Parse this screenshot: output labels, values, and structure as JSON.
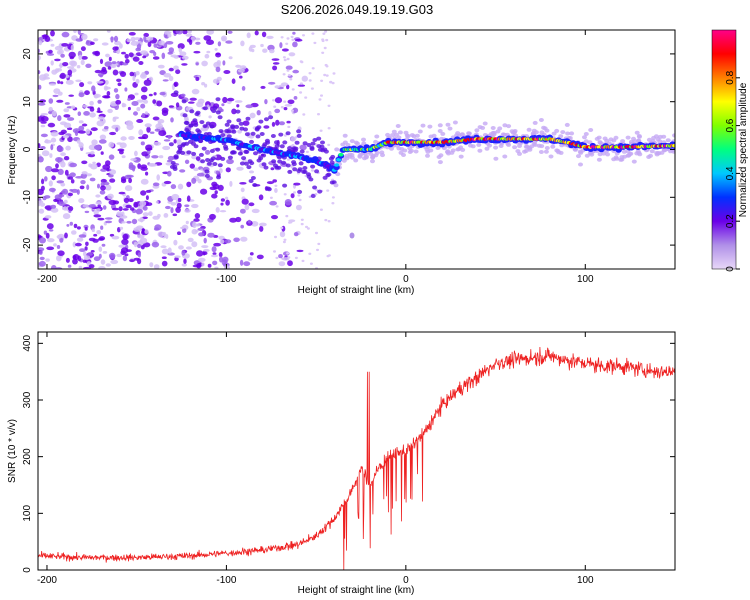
{
  "title": "S206.2026.049.19.19.G03",
  "chart_data": [
    {
      "type": "heatmap",
      "panel": "top",
      "xlabel": "Height of straight line (km)",
      "ylabel": "Frequency (Hz)",
      "xlim": [
        -205,
        150
      ],
      "ylim": [
        -25,
        25
      ],
      "xticks": [
        -200,
        -100,
        0,
        100
      ],
      "yticks": [
        -20,
        -10,
        0,
        10,
        20
      ],
      "colorbar": {
        "label": "Normalized spectral amplitude",
        "range": [
          0,
          1
        ],
        "ticks": [
          0,
          0.2,
          0.4,
          0.6,
          0.8
        ],
        "colormap": [
          "#e8d8f8",
          "#b090e8",
          "#6a00e8",
          "#0030ff",
          "#00c8ff",
          "#00ff80",
          "#80ff00",
          "#ffff00",
          "#ff8000",
          "#ff0000",
          "#ff0088"
        ]
      },
      "ridge": {
        "description_points_km_hz": [
          [
            -125,
            3
          ],
          [
            -100,
            2
          ],
          [
            -80,
            0
          ],
          [
            -60,
            -1.5
          ],
          [
            -45,
            -3
          ],
          [
            -40,
            -4.5
          ],
          [
            -35,
            0
          ],
          [
            -20,
            0
          ],
          [
            -10,
            1.5
          ],
          [
            0,
            1.5
          ],
          [
            20,
            1.5
          ],
          [
            40,
            2.2
          ],
          [
            60,
            2.2
          ],
          [
            80,
            2.2
          ],
          [
            90,
            1.5
          ],
          [
            100,
            0.5
          ],
          [
            120,
            0.5
          ],
          [
            150,
            0.8
          ]
        ]
      }
    },
    {
      "type": "line",
      "panel": "bottom",
      "xlabel": "Height of straight line (km)",
      "ylabel": "SNR (10 * v/v)",
      "xlim": [
        -205,
        150
      ],
      "ylim": [
        0,
        420
      ],
      "xticks": [
        -200,
        -100,
        0,
        100
      ],
      "yticks": [
        0,
        100,
        200,
        300,
        400
      ],
      "series": [
        {
          "name": "SNR",
          "color": "#ee2222",
          "x": [
            -205,
            -180,
            -150,
            -120,
            -100,
            -80,
            -60,
            -50,
            -40,
            -30,
            -25,
            -20,
            -15,
            -10,
            0,
            10,
            20,
            30,
            40,
            50,
            60,
            70,
            80,
            90,
            100,
            110,
            120,
            130,
            140,
            150
          ],
          "y": [
            25,
            22,
            22,
            25,
            30,
            35,
            45,
            60,
            90,
            140,
            180,
            150,
            180,
            200,
            210,
            240,
            290,
            320,
            340,
            365,
            370,
            375,
            378,
            370,
            365,
            360,
            360,
            355,
            350,
            350
          ]
        }
      ]
    }
  ]
}
